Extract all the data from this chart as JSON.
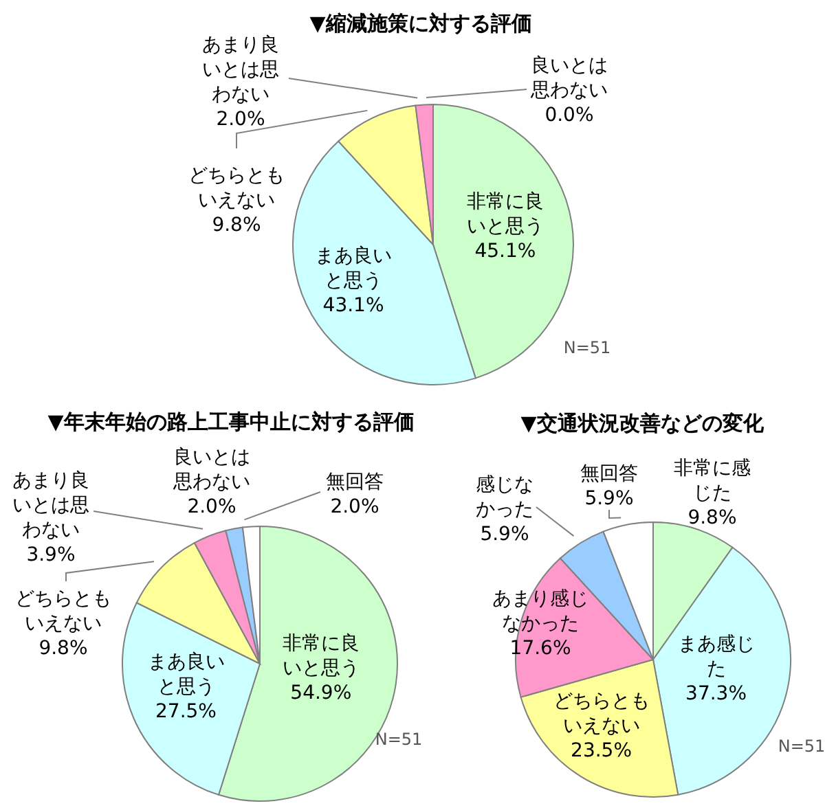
{
  "chart_data": [
    {
      "type": "pie",
      "title": "▼縮減施策に対する評価",
      "categories": [
        "非常に良いと思う",
        "まあ良いと思う",
        "どちらともいえない",
        "あまり良いとは思わない",
        "良いとは思わない"
      ],
      "values": [
        45.1,
        43.1,
        9.8,
        2.0,
        0.0
      ],
      "value_labels": [
        "45.1%",
        "43.1%",
        "9.8%",
        "2.0%",
        "0.0%"
      ],
      "colors": [
        "#ccffcc",
        "#ccffff",
        "#ffff99",
        "#ff99cc",
        "#99ccff"
      ],
      "annotations": [
        "N=51"
      ]
    },
    {
      "type": "pie",
      "title": "▼年末年始の路上工事中止に対する評価",
      "categories": [
        "非常に良いと思う",
        "まあ良いと思う",
        "どちらともいえない",
        "あまり良いとは思わない",
        "良いとは思わない",
        "無回答"
      ],
      "values": [
        54.9,
        27.5,
        9.8,
        3.9,
        2.0,
        2.0
      ],
      "value_labels": [
        "54.9%",
        "27.5%",
        "9.8%",
        "3.9%",
        "2.0%",
        "2.0%"
      ],
      "colors": [
        "#ccffcc",
        "#ccffff",
        "#ffff99",
        "#ff99cc",
        "#99ccff",
        "#ffffff"
      ],
      "annotations": [
        "N=51"
      ]
    },
    {
      "type": "pie",
      "title": "▼交通状況改善などの変化",
      "categories": [
        "非常に感じた",
        "まあ感じた",
        "どちらともいえない",
        "あまり感じなかった",
        "感じなかった",
        "無回答"
      ],
      "values": [
        9.8,
        37.3,
        23.5,
        17.6,
        5.9,
        5.9
      ],
      "value_labels": [
        "9.8%",
        "37.3%",
        "23.5%",
        "17.6%",
        "5.9%",
        "5.9%"
      ],
      "colors": [
        "#ccffcc",
        "#ccffff",
        "#ffff99",
        "#ff99cc",
        "#99ccff",
        "#ffffff"
      ],
      "annotations": [
        "N=51"
      ]
    }
  ]
}
